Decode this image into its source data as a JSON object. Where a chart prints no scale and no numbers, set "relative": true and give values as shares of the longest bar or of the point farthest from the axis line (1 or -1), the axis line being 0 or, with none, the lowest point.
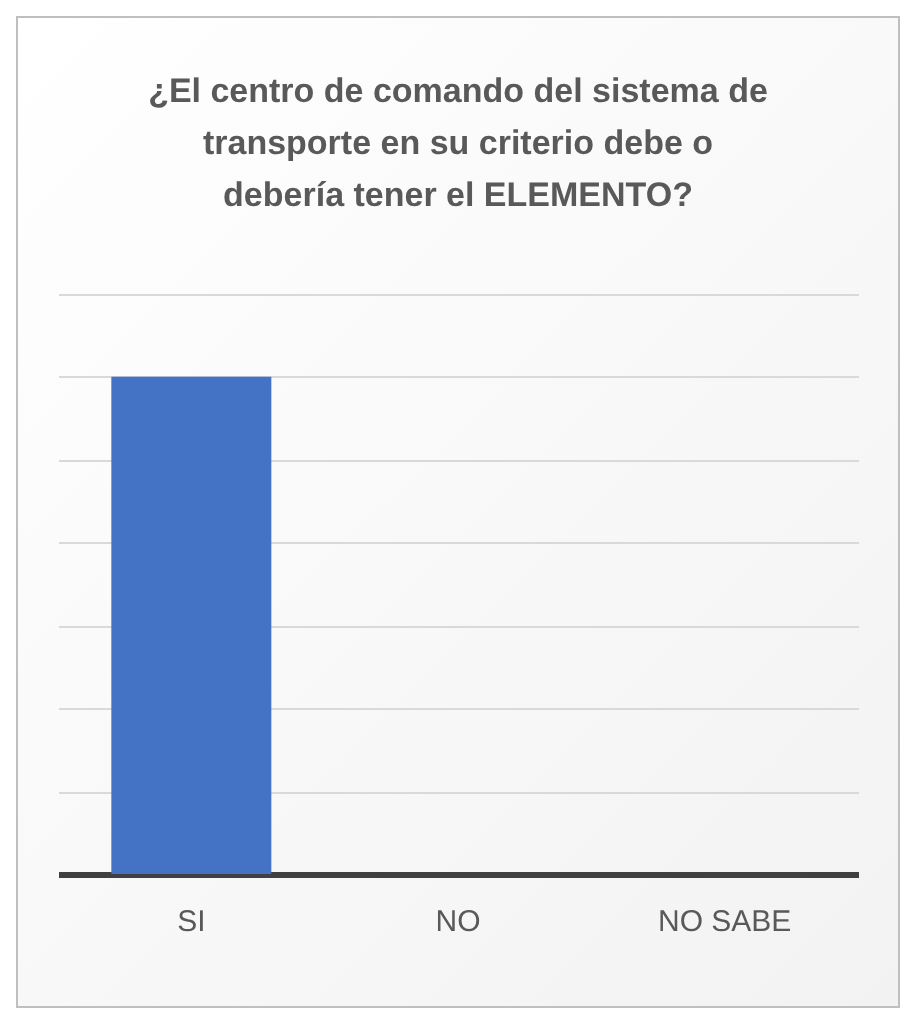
{
  "chart_data": {
    "type": "bar",
    "title": "¿El centro de comando del sistema de transporte en su criterio debe o debería tener el ELEMENTO?",
    "categories": [
      "SI",
      "NO",
      "NO SABE"
    ],
    "values": [
      1,
      0,
      0
    ],
    "color": "#4472c4",
    "relative": true,
    "grid": true
  }
}
